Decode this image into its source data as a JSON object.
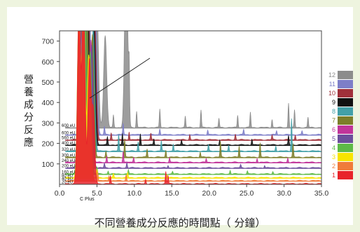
{
  "chart_data": {
    "type": "line",
    "xlabel": "不同營養成分反應的時間點（ 分鐘）",
    "ylabel": "營養成分反應",
    "xlim": [
      0,
      35
    ],
    "ylim": [
      0,
      750
    ],
    "x_ticks": [
      "0.0",
      "5.0",
      "10.0",
      "15.0",
      "20.0",
      "25.0",
      "30.0",
      "35.0"
    ],
    "y_ticks": [
      "100",
      "200",
      "300",
      "400",
      "500",
      "600",
      "700"
    ],
    "axis_note": "C Plus",
    "grid": false,
    "legend_position": "right",
    "series": [
      {
        "name": "1",
        "color": "#e8232a",
        "offset": 0,
        "peaks": [
          [
            2.6,
            850
          ],
          [
            3.2,
            900
          ],
          [
            4.0,
            600
          ],
          [
            4.5,
            350
          ],
          [
            6.8,
            40
          ],
          [
            11.5,
            22
          ],
          [
            14.2,
            60
          ],
          [
            14.5,
            40
          ]
        ]
      },
      {
        "name": "2",
        "color": "#f07b3a",
        "offset": 15,
        "peaks": [
          [
            2.6,
            850
          ],
          [
            3.2,
            900
          ],
          [
            4.0,
            600
          ],
          [
            5.1,
            45
          ],
          [
            6.6,
            25
          ],
          [
            8.9,
            30
          ]
        ]
      },
      {
        "name": "3",
        "color": "#f7e400",
        "offset": 30,
        "peaks": [
          [
            2.6,
            850
          ],
          [
            3.2,
            900
          ],
          [
            3.9,
            600
          ],
          [
            5.0,
            40
          ],
          [
            7.2,
            18
          ],
          [
            9.1,
            25
          ],
          [
            14.4,
            15
          ]
        ]
      },
      {
        "name": "4",
        "color": "#5dba47",
        "offset": 48,
        "peaks": [
          [
            2.6,
            850
          ],
          [
            3.4,
            900
          ],
          [
            4.1,
            600
          ],
          [
            5.0,
            35
          ],
          [
            6.5,
            15
          ],
          [
            9.2,
            20
          ],
          [
            15.1,
            12
          ],
          [
            22.8,
            18
          ],
          [
            25.1,
            14
          ],
          [
            28.5,
            12
          ]
        ]
      },
      {
        "name": "5",
        "color": "#6c4f9c",
        "offset": 78,
        "peaks": [
          [
            2.7,
            850
          ],
          [
            3.4,
            900
          ],
          [
            4.3,
            600
          ],
          [
            6.0,
            22
          ],
          [
            9.0,
            25
          ],
          [
            14.5,
            12
          ],
          [
            24.2,
            15
          ],
          [
            27.4,
            12
          ]
        ]
      },
      {
        "name": "6",
        "color": "#c1359a",
        "offset": 105,
        "peaks": [
          [
            2.7,
            850
          ],
          [
            3.3,
            900
          ],
          [
            4.2,
            600
          ],
          [
            6.3,
            30
          ],
          [
            8.5,
            55
          ],
          [
            9.9,
            25
          ],
          [
            14.7,
            22
          ],
          [
            19.6,
            18
          ],
          [
            26.4,
            20
          ],
          [
            30.5,
            22
          ]
        ]
      },
      {
        "name": "7",
        "color": "#7d7e2a",
        "offset": 130,
        "peaks": [
          [
            2.8,
            850
          ],
          [
            3.6,
            900
          ],
          [
            4.4,
            600
          ],
          [
            6.2,
            30
          ],
          [
            8.7,
            90
          ],
          [
            11.7,
            40
          ],
          [
            14.2,
            35
          ],
          [
            18.8,
            25
          ],
          [
            21.5,
            75
          ],
          [
            24.0,
            55
          ],
          [
            26.8,
            70
          ],
          [
            31.2,
            65
          ]
        ]
      },
      {
        "name": "8",
        "color": "#43a0a8",
        "offset": 160,
        "peaks": [
          [
            2.8,
            850
          ],
          [
            3.6,
            900
          ],
          [
            4.5,
            600
          ],
          [
            7.9,
            80
          ],
          [
            10.5,
            45
          ],
          [
            13.6,
            50
          ],
          [
            15.2,
            35
          ],
          [
            19.9,
            30
          ],
          [
            22.6,
            28
          ],
          [
            28.9,
            25
          ],
          [
            31.0,
            160
          ]
        ]
      },
      {
        "name": "9",
        "color": "#111111",
        "offset": 190,
        "peaks": [
          [
            2.9,
            850
          ],
          [
            3.7,
            900
          ],
          [
            4.6,
            600
          ],
          [
            6.4,
            40
          ],
          [
            8.4,
            55
          ],
          [
            10.8,
            55
          ],
          [
            12.6,
            30
          ],
          [
            16.3,
            22
          ],
          [
            21.4,
            25
          ],
          [
            25.7,
            30
          ],
          [
            30.6,
            45
          ]
        ]
      },
      {
        "name": "10",
        "color": "#a0303a",
        "offset": 215,
        "peaks": [
          [
            2.9,
            850
          ],
          [
            3.8,
            900
          ],
          [
            4.7,
            600
          ],
          [
            6.9,
            35
          ],
          [
            9.3,
            40
          ],
          [
            12.2,
            30
          ],
          [
            17.4,
            25
          ],
          [
            23.5,
            28
          ],
          [
            28.4,
            22
          ],
          [
            31.5,
            25
          ]
        ]
      },
      {
        "name": "11",
        "color": "#7d7ec8",
        "offset": 240,
        "peaks": [
          [
            3.0,
            850
          ],
          [
            3.9,
            900
          ],
          [
            4.8,
            600
          ],
          [
            6.0,
            40
          ],
          [
            8.5,
            55
          ],
          [
            13.4,
            30
          ],
          [
            19.8,
            22
          ],
          [
            24.6,
            25
          ],
          [
            29.0,
            20
          ],
          [
            32.4,
            18
          ]
        ]
      },
      {
        "name": "12",
        "color": "#8c8c8c",
        "offset": 275,
        "peaks": [
          [
            3.0,
            850
          ],
          [
            3.9,
            900
          ],
          [
            5.0,
            600
          ],
          [
            6.1,
            450
          ],
          [
            7.2,
            60
          ],
          [
            8.9,
            900
          ],
          [
            9.3,
            250
          ],
          [
            10.3,
            80
          ],
          [
            13.4,
            90
          ],
          [
            16.8,
            55
          ],
          [
            18.9,
            85
          ],
          [
            21.3,
            45
          ],
          [
            23.8,
            60
          ],
          [
            25.5,
            75
          ],
          [
            28.4,
            40
          ],
          [
            30.6,
            120
          ],
          [
            31.4,
            85
          ],
          [
            33.2,
            50
          ]
        ]
      }
    ],
    "channel_labels": [
      "600 eU",
      "600 eU",
      "560 eU",
      "400 eU",
      "320 eU",
      "300 eU",
      "240 eU",
      "200 eU",
      "160 eU",
      "80 eU",
      "40 eU",
      "20 eU"
    ]
  }
}
